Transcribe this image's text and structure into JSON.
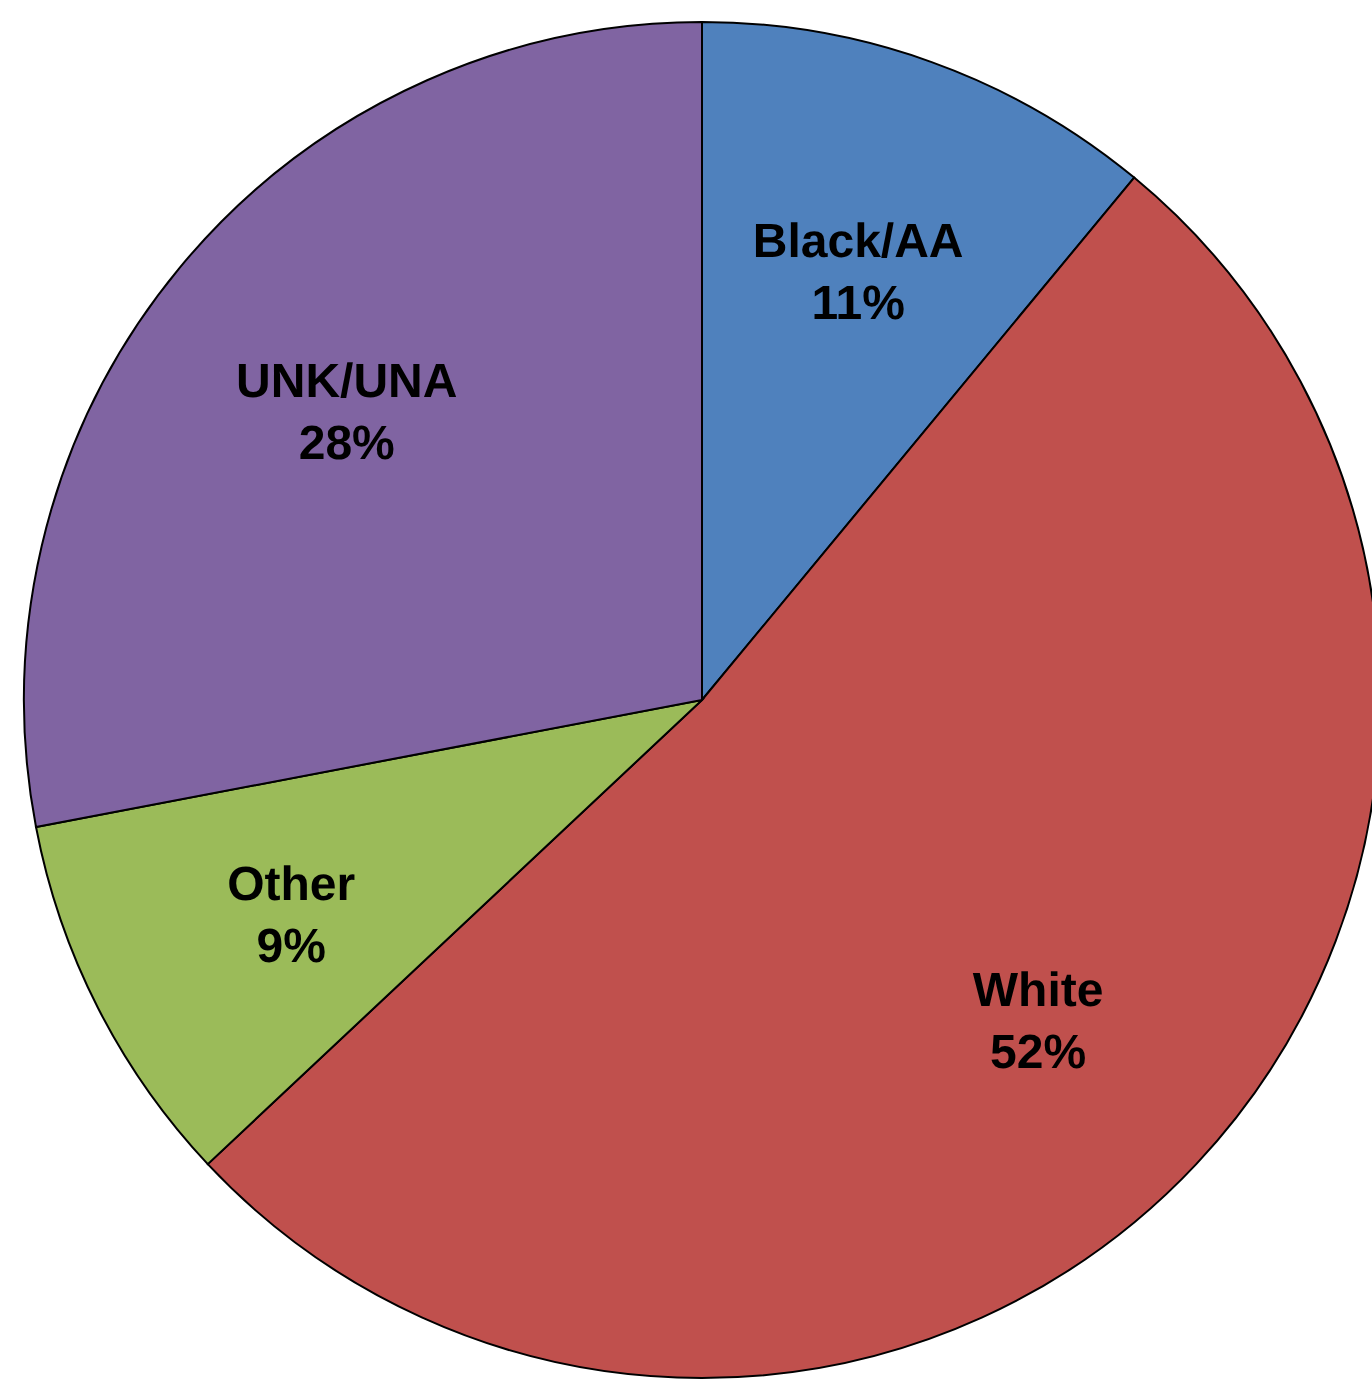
{
  "chart_data": {
    "type": "pie",
    "categories": [
      "Black/AA",
      "White",
      "Other",
      "UNK/UNA"
    ],
    "values": [
      11,
      52,
      9,
      28
    ],
    "colors": [
      "#4f81bd",
      "#c0504d",
      "#9bbb59",
      "#8064a2"
    ],
    "value_labels": [
      "11%",
      "52%",
      "9%",
      "28%"
    ]
  }
}
